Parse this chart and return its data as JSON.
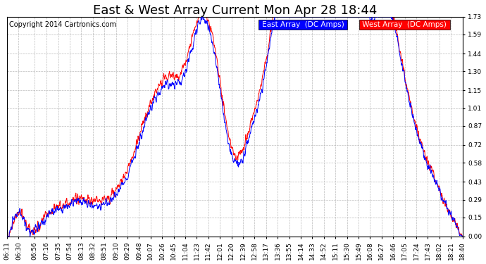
{
  "title": "East & West Array Current Mon Apr 28 18:44",
  "copyright": "Copyright 2014 Cartronics.com",
  "legend_east": "East Array  (DC Amps)",
  "legend_west": "West Array  (DC Amps)",
  "east_color": "#0000ff",
  "west_color": "#ff0000",
  "background_color": "#ffffff",
  "grid_color": "#aaaaaa",
  "ylim": [
    0.0,
    1.73
  ],
  "yticks": [
    0.0,
    0.15,
    0.29,
    0.43,
    0.58,
    0.72,
    0.87,
    1.01,
    1.15,
    1.3,
    1.44,
    1.59,
    1.73
  ],
  "title_fontsize": 13,
  "legend_fontsize": 7.5,
  "tick_fontsize": 6.5,
  "copyright_fontsize": 7,
  "xtick_labels": [
    "06:11",
    "06:30",
    "06:56",
    "07:16",
    "07:35",
    "07:54",
    "08:13",
    "08:32",
    "08:51",
    "09:10",
    "09:29",
    "09:48",
    "10:07",
    "10:26",
    "10:45",
    "11:04",
    "11:23",
    "11:42",
    "12:01",
    "12:20",
    "12:39",
    "12:58",
    "13:17",
    "13:36",
    "13:55",
    "14:14",
    "14:33",
    "14:52",
    "15:11",
    "15:30",
    "15:49",
    "16:08",
    "16:27",
    "16:46",
    "17:05",
    "17:24",
    "17:43",
    "18:02",
    "18:21",
    "18:40"
  ]
}
